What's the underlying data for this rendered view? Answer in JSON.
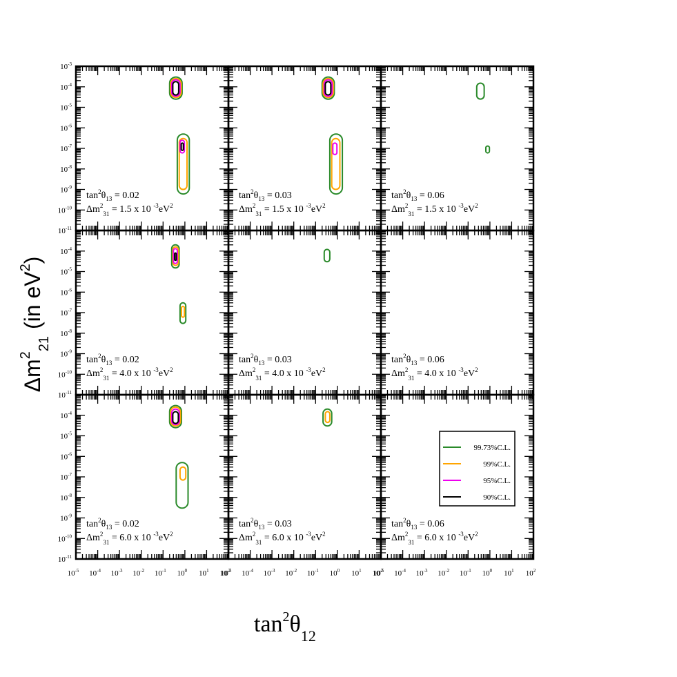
{
  "figure": {
    "xlabel": {
      "main": "tan",
      "sup": "2",
      "sym": "θ",
      "sub": "12"
    },
    "ylabel": {
      "main": "Δm",
      "sup1": "2",
      "sub": "21",
      "tail": "(in eV",
      "sup2": "2",
      "close": ")"
    }
  },
  "chart_data": {
    "type": "contour",
    "x_scale": "log",
    "y_scale": "log",
    "xlim": [
      1e-05,
      100
    ],
    "ylim": [
      1e-11,
      0.001
    ],
    "x_ticks": [
      {
        "m": "10",
        "e": "-5"
      },
      {
        "m": "10",
        "e": "-4"
      },
      {
        "m": "10",
        "e": "-3"
      },
      {
        "m": "10",
        "e": "-2"
      },
      {
        "m": "10",
        "e": "-1"
      },
      {
        "m": "10",
        "e": "0"
      },
      {
        "m": "10",
        "e": "1"
      },
      {
        "m": "10",
        "e": "2"
      }
    ],
    "x_tick_exponents": [
      -5,
      -4,
      -3,
      -2,
      -1,
      0,
      1,
      2
    ],
    "y_ticks": [
      {
        "m": "10",
        "e": "-11"
      },
      {
        "m": "10",
        "e": "-10"
      },
      {
        "m": "10",
        "e": "-9"
      },
      {
        "m": "10",
        "e": "-8"
      },
      {
        "m": "10",
        "e": "-7"
      },
      {
        "m": "10",
        "e": "-6"
      },
      {
        "m": "10",
        "e": "-5"
      },
      {
        "m": "10",
        "e": "-4"
      },
      {
        "m": "10",
        "e": "-3"
      }
    ],
    "y_tick_exponents": [
      -11,
      -10,
      -9,
      -8,
      -7,
      -6,
      -5,
      -4,
      -3
    ],
    "grid": false,
    "legend_position": "lower-right of bottom-right panel",
    "levels": [
      {
        "name": "99.73%C.L.",
        "color": "#2a8a2a"
      },
      {
        "name": "99%C.L.",
        "color": "#ffa500"
      },
      {
        "name": "95%C.L.",
        "color": "#ee00ee"
      },
      {
        "name": "90%C.L.",
        "color": "#000000"
      }
    ],
    "panels": [
      {
        "row": 0,
        "col": 0,
        "annotation": {
          "t13": "0.02",
          "dm31": "1.5 x 10",
          "dm31_exp": "-3"
        },
        "regions": [
          {
            "level": 0,
            "x": [
              0.2,
              0.75
            ],
            "y": [
              2.5e-05,
              0.0003
            ]
          },
          {
            "level": 1,
            "x": [
              0.22,
              0.68
            ],
            "y": [
              3e-05,
              0.00025
            ]
          },
          {
            "level": 2,
            "x": [
              0.25,
              0.6
            ],
            "y": [
              3.5e-05,
              0.00022
            ]
          },
          {
            "level": 3,
            "x": [
              0.28,
              0.52
            ],
            "y": [
              4e-05,
              0.00018
            ]
          },
          {
            "level": 0,
            "x": [
              0.45,
              1.6
            ],
            "y": [
              6e-10,
              5e-07
            ]
          },
          {
            "level": 1,
            "x": [
              0.55,
              1.25
            ],
            "y": [
              1e-09,
              3e-07
            ]
          },
          {
            "level": 2,
            "x": [
              0.6,
              0.95
            ],
            "y": [
              6e-08,
              2.5e-07
            ]
          },
          {
            "level": 3,
            "x": [
              0.68,
              0.85
            ],
            "y": [
              8e-08,
              1.8e-07
            ]
          }
        ]
      },
      {
        "row": 0,
        "col": 1,
        "annotation": {
          "t13": "0.03",
          "dm31": "1.5 x 10",
          "dm31_exp": "-3"
        },
        "regions": [
          {
            "level": 0,
            "x": [
              0.2,
              0.72
            ],
            "y": [
              2.5e-05,
              0.0003
            ]
          },
          {
            "level": 1,
            "x": [
              0.22,
              0.66
            ],
            "y": [
              3e-05,
              0.00025
            ]
          },
          {
            "level": 2,
            "x": [
              0.25,
              0.58
            ],
            "y": [
              3.5e-05,
              0.00022
            ]
          },
          {
            "level": 3,
            "x": [
              0.28,
              0.5
            ],
            "y": [
              4e-05,
              0.00018
            ]
          },
          {
            "level": 0,
            "x": [
              0.45,
              1.7
            ],
            "y": [
              6e-10,
              5e-07
            ]
          },
          {
            "level": 1,
            "x": [
              0.55,
              1.3
            ],
            "y": [
              1e-09,
              3e-07
            ]
          },
          {
            "level": 2,
            "x": [
              0.62,
              0.95
            ],
            "y": [
              5e-08,
              1.8e-07
            ]
          }
        ]
      },
      {
        "row": 0,
        "col": 2,
        "annotation": {
          "t13": "0.06",
          "dm31": "1.5 x 10",
          "dm31_exp": "-3"
        },
        "regions": [
          {
            "level": 0,
            "x": [
              0.25,
              0.55
            ],
            "y": [
              2.5e-05,
              0.00015
            ]
          },
          {
            "level": 0,
            "x": [
              0.65,
              0.95
            ],
            "y": [
              6e-08,
              1.3e-07
            ]
          }
        ]
      },
      {
        "row": 1,
        "col": 0,
        "annotation": {
          "t13": "0.02",
          "dm31": "4.0 x 10",
          "dm31_exp": "-3"
        },
        "regions": [
          {
            "level": 0,
            "x": [
              0.25,
              0.55
            ],
            "y": [
              1.5e-05,
              0.0002
            ]
          },
          {
            "level": 1,
            "x": [
              0.28,
              0.5
            ],
            "y": [
              2e-05,
              0.00016
            ]
          },
          {
            "level": 2,
            "x": [
              0.3,
              0.45
            ],
            "y": [
              2.5e-05,
              0.00013
            ]
          },
          {
            "level": 3,
            "x": [
              0.34,
              0.4
            ],
            "y": [
              3.5e-05,
              8e-05
            ]
          },
          {
            "level": 0,
            "x": [
              0.6,
              1.1
            ],
            "y": [
              3e-08,
              3e-07
            ]
          },
          {
            "level": 1,
            "x": [
              0.7,
              0.95
            ],
            "y": [
              6e-08,
              2e-07
            ]
          }
        ]
      },
      {
        "row": 1,
        "col": 1,
        "annotation": {
          "t13": "0.03",
          "dm31": "4.0 x 10",
          "dm31_exp": "-3"
        },
        "regions": [
          {
            "level": 0,
            "x": [
              0.25,
              0.45
            ],
            "y": [
              3e-05,
              0.00012
            ]
          }
        ]
      },
      {
        "row": 1,
        "col": 2,
        "annotation": {
          "t13": "0.06",
          "dm31": "4.0 x 10",
          "dm31_exp": "-3"
        },
        "regions": []
      },
      {
        "row": 2,
        "col": 0,
        "annotation": {
          "t13": "0.02",
          "dm31": "6.0 x 10",
          "dm31_exp": "-3"
        },
        "regions": [
          {
            "level": 0,
            "x": [
              0.2,
              0.7
            ],
            "y": [
              2.5e-05,
              0.0003
            ]
          },
          {
            "level": 1,
            "x": [
              0.22,
              0.63
            ],
            "y": [
              3e-05,
              0.00025
            ]
          },
          {
            "level": 2,
            "x": [
              0.25,
              0.56
            ],
            "y": [
              3.5e-05,
              0.0002
            ]
          },
          {
            "level": 3,
            "x": [
              0.28,
              0.5
            ],
            "y": [
              4e-05,
              0.00015
            ]
          },
          {
            "level": 0,
            "x": [
              0.4,
              1.4
            ],
            "y": [
              3e-09,
              5e-07
            ]
          },
          {
            "level": 1,
            "x": [
              0.6,
              1.1
            ],
            "y": [
              7e-08,
              3e-07
            ]
          }
        ]
      },
      {
        "row": 2,
        "col": 1,
        "annotation": {
          "t13": "0.03",
          "dm31": "6.0 x 10",
          "dm31_exp": "-3"
        },
        "regions": [
          {
            "level": 0,
            "x": [
              0.22,
              0.55
            ],
            "y": [
              3e-05,
              0.0002
            ]
          },
          {
            "level": 1,
            "x": [
              0.28,
              0.45
            ],
            "y": [
              4.5e-05,
              0.00015
            ]
          }
        ]
      },
      {
        "row": 2,
        "col": 2,
        "annotation": {
          "t13": "0.06",
          "dm31": "6.0 x 10",
          "dm31_exp": "-3"
        },
        "regions": []
      }
    ]
  }
}
